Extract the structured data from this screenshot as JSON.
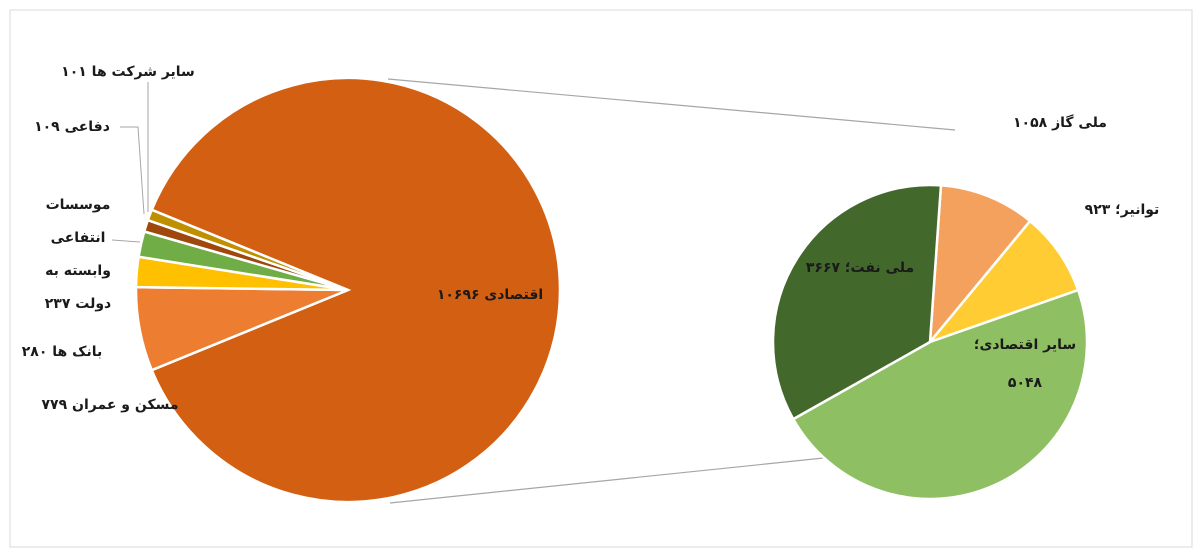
{
  "chart_data": [
    {
      "type": "pie",
      "labels": [
        [
          "اقتصادی ۱۰۶۹۶"
        ],
        [
          "مسکن و عمران ۷۷۹"
        ],
        [
          "بانک ها ۲۸۰"
        ],
        [
          "موسسات",
          "انتفاعی",
          "وابسته به",
          "دولت ۲۳۷"
        ],
        [
          "دفاعی ۱۰۹"
        ],
        [
          "سایر شرکت ها ۱۰۱"
        ]
      ],
      "values": [
        10696,
        779,
        280,
        237,
        109,
        101
      ],
      "colors": [
        "#d35f12",
        "#ed7d31",
        "#ffc000",
        "#70ad47",
        "#9e480e",
        "#bf8f00"
      ]
    },
    {
      "type": "pie",
      "labels": [
        [
          "ملی گاز ۱۰۵۸"
        ],
        [
          "توانیر؛ ۹۲۳"
        ],
        [
          "سایر اقتصادی؛",
          "۵۰۴۸"
        ],
        [
          "ملی نفت؛ ۳۶۶۷"
        ]
      ],
      "values": [
        1058,
        923,
        5048,
        3667
      ],
      "colors": [
        "#f4a15d",
        "#ffcd33",
        "#8ebf62",
        "#43682b"
      ]
    }
  ]
}
